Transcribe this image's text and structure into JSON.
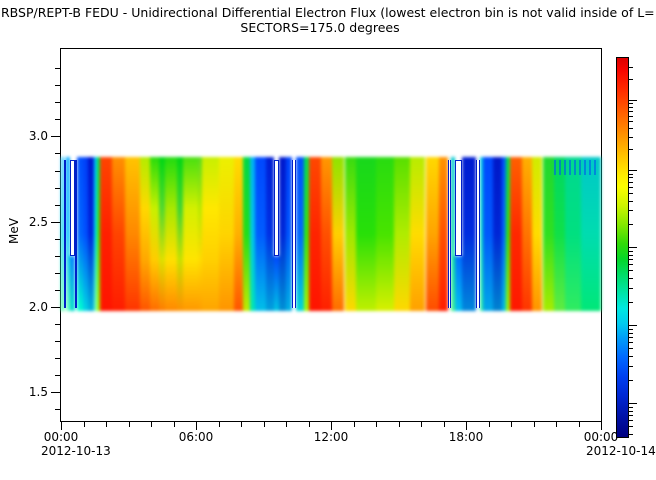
{
  "header": {
    "title_line1": "RBSP/REPT-B  FEDU - Unidirectional Differential Electron Flux (lowest electron bin is not valid inside of L=",
    "subtitle": "SECTORS=175.0 degrees"
  },
  "y_axis": {
    "label": "MeV",
    "major_ticks": [
      {
        "value": 3.0,
        "label": "3.0"
      },
      {
        "value": 2.5,
        "label": "2.5"
      },
      {
        "value": 2.0,
        "label": "2.0"
      },
      {
        "value": 1.5,
        "label": "1.5"
      }
    ],
    "minor_step": 0.1,
    "range_min": 1.33,
    "range_max": 3.52
  },
  "x_axis": {
    "major_tick_labels": [
      "00:00",
      "06:00",
      "12:00",
      "18:00",
      "00:00"
    ],
    "major_tick_hours": [
      0,
      6,
      12,
      18,
      24
    ],
    "minor_every_hours": 1,
    "total_hours": 24,
    "date_start": "2012-10-13",
    "date_end": "2012-10-14"
  },
  "colorbar": {
    "scale": "log",
    "labels_visible": false,
    "stops": [
      [
        0,
        "#dc0000"
      ],
      [
        3,
        "#f60400"
      ],
      [
        8,
        "#ff2800"
      ],
      [
        14,
        "#ff5c00"
      ],
      [
        20,
        "#ff9000"
      ],
      [
        26,
        "#ffc400"
      ],
      [
        31,
        "#ffec00"
      ],
      [
        34,
        "#fbfd00"
      ],
      [
        39,
        "#ccf400"
      ],
      [
        44,
        "#84e800"
      ],
      [
        49,
        "#30da08"
      ],
      [
        53,
        "#04d628"
      ],
      [
        57,
        "#00dc64"
      ],
      [
        62,
        "#00e4a8"
      ],
      [
        66,
        "#00e8e0"
      ],
      [
        70,
        "#00ccf0"
      ],
      [
        74,
        "#009cf8"
      ],
      [
        79,
        "#0068ff"
      ],
      [
        84,
        "#0040f0"
      ],
      [
        89,
        "#0028d4"
      ],
      [
        94,
        "#0014ac"
      ],
      [
        100,
        "#000080"
      ]
    ]
  },
  "chart_data": {
    "type": "heatmap",
    "title": "RBSP/REPT-B  FEDU - Unidirectional Differential Electron Flux",
    "subtitle": "SECTORS=175.0 degrees",
    "x_start": "2012-10-13 00:00",
    "x_end": "2012-10-14 00:00",
    "x_range_hours": [
      0,
      24
    ],
    "y_label": "MeV",
    "y_axis_range_mev": [
      1.33,
      3.52
    ],
    "data_band_mev": [
      2.0,
      2.85
    ],
    "notch_bottom_mev": 2.3,
    "segments": [
      {
        "t0": 0.0,
        "t1": 0.13,
        "kind": "data",
        "colors": [
          "#40ccff",
          "#00d8f0",
          "#50ffa8"
        ]
      },
      {
        "t0": 0.13,
        "t1": 0.22,
        "kind": "gap"
      },
      {
        "t0": 0.22,
        "t1": 0.38,
        "kind": "data",
        "colors": [
          "#00a8ff",
          "#00c0ff",
          "#70ffc0"
        ]
      },
      {
        "t0": 0.38,
        "t1": 0.62,
        "kind": "notch",
        "colors": [
          "#0080ff",
          "#00e0cc"
        ]
      },
      {
        "t0": 0.62,
        "t1": 0.72,
        "kind": "gap"
      },
      {
        "t0": 0.72,
        "t1": 0.96,
        "kind": "data",
        "colors": [
          "#0050ff",
          "#0068ff",
          "#00ffd0"
        ]
      },
      {
        "t0": 0.96,
        "t1": 1.2,
        "kind": "data",
        "colors": [
          "#0040f8",
          "#0050ff",
          "#00d4e4"
        ]
      },
      {
        "t0": 1.2,
        "t1": 1.48,
        "kind": "data",
        "colors": [
          "#0014cc",
          "#0024dc",
          "#00b4dc"
        ]
      },
      {
        "t0": 1.48,
        "t1": 1.58,
        "kind": "data",
        "colors": [
          "#00c8ff",
          "#00e0f0",
          "#80ffb8"
        ]
      },
      {
        "t0": 1.58,
        "t1": 1.74,
        "kind": "data",
        "colors": [
          "#00e048",
          "#38ee00",
          "#a0ff00"
        ]
      },
      {
        "t0": 1.74,
        "t1": 2.25,
        "kind": "data",
        "colors": [
          "#ff4400",
          "#ff2000",
          "#ff1400"
        ]
      },
      {
        "t0": 2.25,
        "t1": 2.85,
        "kind": "data",
        "colors": [
          "#ff9000",
          "#ff4400",
          "#ff1c00"
        ]
      },
      {
        "t0": 2.85,
        "t1": 3.5,
        "kind": "data",
        "colors": [
          "#ffc400",
          "#ff8800",
          "#ff3400"
        ]
      },
      {
        "t0": 3.5,
        "t1": 3.95,
        "kind": "data",
        "colors": [
          "#b4ec00",
          "#ffd800",
          "#ffa800",
          "#ff5400"
        ]
      },
      {
        "t0": 3.95,
        "t1": 4.35,
        "kind": "data",
        "colors": [
          "#28dc0c",
          "#c8f000",
          "#ffcc00",
          "#ff6c00"
        ]
      },
      {
        "t0": 4.35,
        "t1": 4.6,
        "kind": "data",
        "colors": [
          "#00d614",
          "#50d830",
          "#dde000",
          "#ff7c00"
        ]
      },
      {
        "t0": 4.6,
        "t1": 5.15,
        "kind": "data",
        "colors": [
          "#20dc10",
          "#a8e800",
          "#ffe000",
          "#ff8800"
        ]
      },
      {
        "t0": 5.15,
        "t1": 5.4,
        "kind": "data",
        "colors": [
          "#00d614",
          "#40d434",
          "#c8e000",
          "#ff9000"
        ]
      },
      {
        "t0": 5.4,
        "t1": 6.1,
        "kind": "data",
        "colors": [
          "#48e010",
          "#d4f000",
          "#ffe400",
          "#ff9800"
        ]
      },
      {
        "t0": 6.1,
        "t1": 6.25,
        "kind": "data",
        "colors": [
          "#58dc20",
          "#b8e800",
          "#ffdc00",
          "#ff9c00"
        ]
      },
      {
        "t0": 6.25,
        "t1": 7.0,
        "kind": "data",
        "colors": [
          "#c8f000",
          "#ffe800",
          "#ffd000",
          "#ffa400"
        ]
      },
      {
        "t0": 7.0,
        "t1": 7.7,
        "kind": "data",
        "colors": [
          "#ecf000",
          "#ffd400",
          "#ff9400"
        ]
      },
      {
        "t0": 7.7,
        "t1": 8.1,
        "kind": "data",
        "colors": [
          "#ffdc00",
          "#ffb000",
          "#ff5400"
        ]
      },
      {
        "t0": 8.1,
        "t1": 8.38,
        "kind": "data",
        "colors": [
          "#00d848",
          "#20e018",
          "#c0ec00"
        ]
      },
      {
        "t0": 8.38,
        "t1": 8.62,
        "kind": "data",
        "colors": [
          "#00b4f4",
          "#00c8e8",
          "#00e8b0"
        ]
      },
      {
        "t0": 8.62,
        "t1": 9.1,
        "kind": "data",
        "colors": [
          "#0048ff",
          "#005cff",
          "#00c0e8"
        ]
      },
      {
        "t0": 9.1,
        "t1": 9.46,
        "kind": "data",
        "colors": [
          "#001ed4",
          "#0030e4",
          "#00a0dc"
        ]
      },
      {
        "t0": 9.46,
        "t1": 9.7,
        "kind": "notch",
        "colors": [
          "#0048ff",
          "#00c4e4"
        ]
      },
      {
        "t0": 9.7,
        "t1": 10.0,
        "kind": "data",
        "colors": [
          "#0018cc",
          "#0028d8",
          "#0090d4"
        ]
      },
      {
        "t0": 10.0,
        "t1": 10.28,
        "kind": "data",
        "colors": [
          "#0044fc",
          "#0058ff",
          "#00b0e4"
        ]
      },
      {
        "t0": 10.28,
        "t1": 10.46,
        "kind": "gap"
      },
      {
        "t0": 10.46,
        "t1": 10.8,
        "kind": "data",
        "colors": [
          "#0050ff",
          "#0068ff",
          "#00d8d8"
        ]
      },
      {
        "t0": 10.8,
        "t1": 11.0,
        "kind": "data",
        "colors": [
          "#00e050",
          "#30ee08",
          "#a8f800"
        ]
      },
      {
        "t0": 11.0,
        "t1": 11.55,
        "kind": "data",
        "colors": [
          "#ff4800",
          "#ff2400",
          "#ff1400"
        ]
      },
      {
        "t0": 11.55,
        "t1": 12.05,
        "kind": "data",
        "colors": [
          "#ff9800",
          "#ff5000",
          "#ff2000"
        ]
      },
      {
        "t0": 12.05,
        "t1": 12.6,
        "kind": "data",
        "colors": [
          "#90e400",
          "#ffd000",
          "#ff6c00"
        ]
      },
      {
        "t0": 12.6,
        "t1": 13.1,
        "kind": "data",
        "colors": [
          "#38dc10",
          "#a0e800",
          "#ffd800"
        ]
      },
      {
        "t0": 13.1,
        "t1": 14.0,
        "kind": "data",
        "colors": [
          "#18d81c",
          "#28e008",
          "#c0f000"
        ]
      },
      {
        "t0": 14.0,
        "t1": 14.8,
        "kind": "data",
        "colors": [
          "#28dc10",
          "#48e400",
          "#d8f000"
        ]
      },
      {
        "t0": 14.8,
        "t1": 15.5,
        "kind": "data",
        "colors": [
          "#58e000",
          "#b0ec00",
          "#ffd800"
        ]
      },
      {
        "t0": 15.5,
        "t1": 16.2,
        "kind": "data",
        "colors": [
          "#b8ec00",
          "#ffdc00",
          "#ffa000"
        ]
      },
      {
        "t0": 16.2,
        "t1": 16.8,
        "kind": "data",
        "colors": [
          "#ffd800",
          "#ffa400",
          "#ff4c00"
        ]
      },
      {
        "t0": 16.8,
        "t1": 17.2,
        "kind": "data",
        "colors": [
          "#ff9400",
          "#ff5000",
          "#ff1c00"
        ]
      },
      {
        "t0": 17.2,
        "t1": 17.34,
        "kind": "gap"
      },
      {
        "t0": 17.34,
        "t1": 17.52,
        "kind": "data",
        "colors": [
          "#00c8d0",
          "#00dcb0",
          "#40f090"
        ]
      },
      {
        "t0": 17.52,
        "t1": 17.84,
        "kind": "notch",
        "colors": [
          "#0070ff",
          "#00c0f0"
        ]
      },
      {
        "t0": 17.84,
        "t1": 18.45,
        "kind": "data",
        "colors": [
          "#001cd0",
          "#002ce0",
          "#0088dc"
        ]
      },
      {
        "t0": 18.45,
        "t1": 18.62,
        "kind": "gap"
      },
      {
        "t0": 18.62,
        "t1": 18.76,
        "kind": "data",
        "colors": [
          "#00cce8",
          "#00dcc8",
          "#30f0a0"
        ]
      },
      {
        "t0": 18.76,
        "t1": 19.2,
        "kind": "data",
        "colors": [
          "#0048ff",
          "#0058fc",
          "#00a8e8"
        ]
      },
      {
        "t0": 19.2,
        "t1": 19.6,
        "kind": "data",
        "colors": [
          "#0018c8",
          "#0026d6",
          "#0084d0"
        ]
      },
      {
        "t0": 19.6,
        "t1": 19.78,
        "kind": "data",
        "colors": [
          "#0054ff",
          "#0068ff",
          "#00c0e0"
        ]
      },
      {
        "t0": 19.78,
        "t1": 19.96,
        "kind": "data",
        "colors": [
          "#00e04c",
          "#2cee04",
          "#a0f800"
        ]
      },
      {
        "t0": 19.96,
        "t1": 20.5,
        "kind": "data",
        "colors": [
          "#ff6000",
          "#ff2800",
          "#ff1800"
        ]
      },
      {
        "t0": 20.5,
        "t1": 20.95,
        "kind": "data",
        "colors": [
          "#ffb000",
          "#ff7400",
          "#ff3400"
        ]
      },
      {
        "t0": 20.95,
        "t1": 21.4,
        "kind": "data",
        "colors": [
          "#d0ec00",
          "#ffdc00",
          "#ff9400"
        ]
      },
      {
        "t0": 21.4,
        "t1": 21.9,
        "kind": "data",
        "colors": [
          "#20d830",
          "#30e020",
          "#a8ec00"
        ]
      },
      {
        "t0": 21.9,
        "t1": 22.4,
        "kind": "data",
        "colors": [
          "#00d864",
          "#10e048",
          "#60ec40"
        ]
      },
      {
        "t0": 22.4,
        "t1": 23.1,
        "kind": "data",
        "colors": [
          "#00d890",
          "#00e080",
          "#30ec60"
        ]
      },
      {
        "t0": 23.1,
        "t1": 24.0,
        "kind": "data",
        "colors": [
          "#00c8c8",
          "#00dcb0",
          "#00e878"
        ]
      },
      {
        "t0": 21.9,
        "t1": 23.9,
        "kind": "streaks"
      }
    ]
  }
}
